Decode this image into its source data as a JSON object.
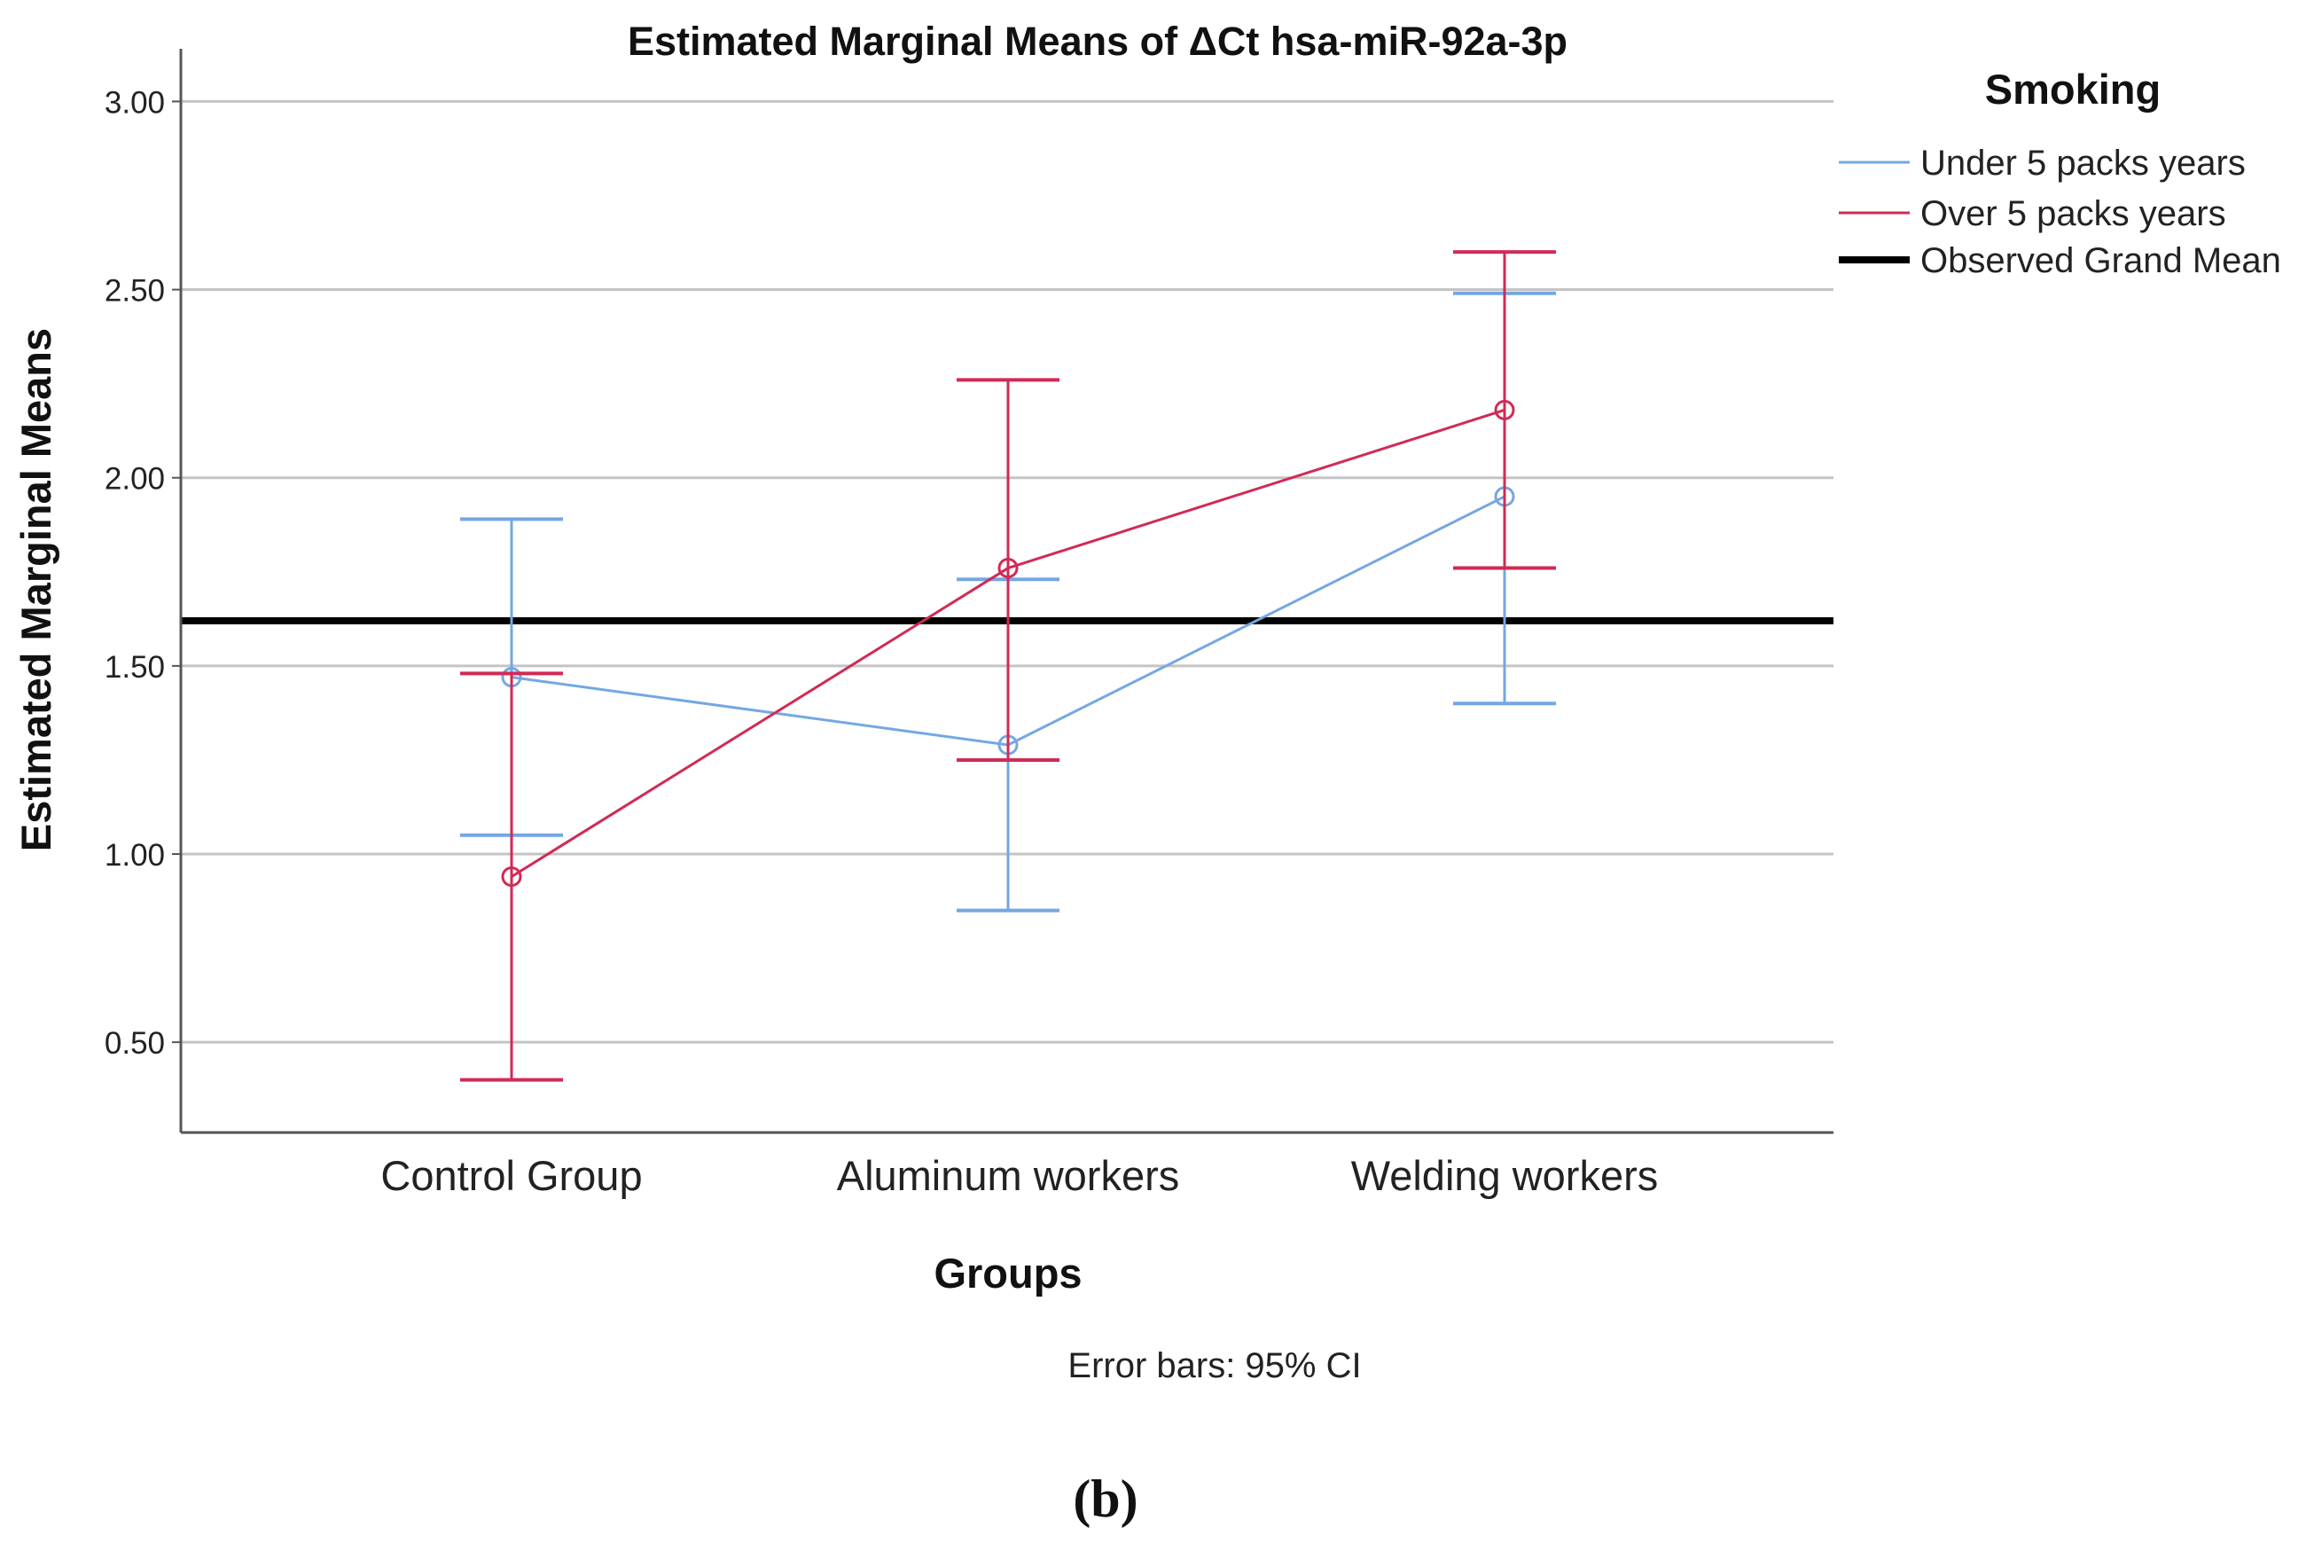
{
  "chart_data": {
    "type": "line",
    "title": "Estimated Marginal Means of ΔCt hsa-miR-92a-3p",
    "xlabel": "Groups",
    "ylabel": "Estimated Marginal Means",
    "categories": [
      "Control Group",
      "Aluminum workers",
      "Welding workers"
    ],
    "ylim": [
      0.26,
      3.14
    ],
    "yticks": [
      0.5,
      1.0,
      1.5,
      2.0,
      2.5,
      3.0
    ],
    "ytick_labels": [
      "0.50",
      "1.00",
      "1.50",
      "2.00",
      "2.50",
      "3.00"
    ],
    "grid": true,
    "legend_title": "Smoking",
    "legend_position": "top-right, outside plot",
    "series": [
      {
        "name": "Under 5 packs years",
        "color": "#74a7e3",
        "values": [
          1.47,
          1.29,
          1.95
        ],
        "ci_lower": [
          1.05,
          0.85,
          1.4
        ],
        "ci_upper": [
          1.89,
          1.73,
          2.49
        ]
      },
      {
        "name": "Over 5 packs years",
        "color": "#d12a55",
        "values": [
          0.94,
          1.76,
          2.18
        ],
        "ci_lower": [
          0.4,
          1.25,
          1.76
        ],
        "ci_upper": [
          1.48,
          2.26,
          2.6
        ]
      }
    ],
    "reference_line": {
      "name": "Observed Grand Mean",
      "value": 1.62,
      "color": "#000000"
    },
    "footnote": "Error bars: 95% CI",
    "panel_label": "(b)"
  }
}
